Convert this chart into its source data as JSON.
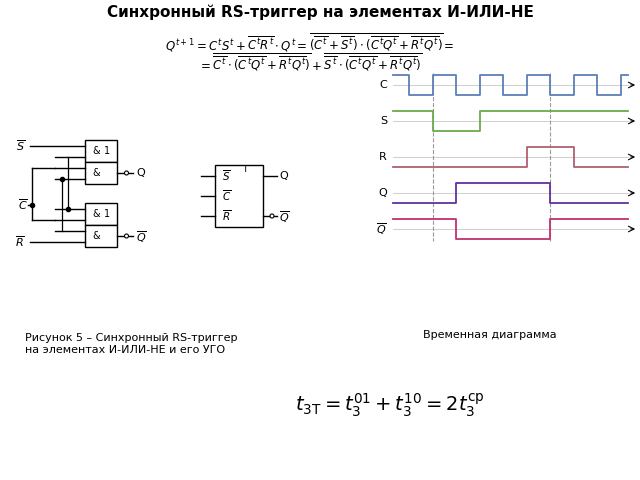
{
  "title": "Синхронный RS-триггер на элементах И-ИЛИ-НЕ",
  "caption_left": "Рисунок 5 – Синхронный RS-триггер\nна элементах И-ИЛИ-НЕ и его УГО",
  "caption_right": "Временная диаграмма",
  "bg_color": "#ffffff",
  "diagram_colors": {
    "C": "#5b7fb5",
    "S": "#6aaa50",
    "R": "#b06070",
    "Q": "#6030a0",
    "Qbar": "#c03070"
  },
  "dashed_line_color": "#999999",
  "C_times": [
    0,
    7,
    17,
    27,
    37,
    47,
    57,
    67,
    77,
    87,
    97,
    100
  ],
  "C_vals": [
    1,
    0,
    1,
    0,
    1,
    0,
    1,
    0,
    1,
    0,
    1,
    1
  ],
  "S_times": [
    0,
    17,
    37,
    100
  ],
  "S_vals": [
    1,
    0,
    1,
    1
  ],
  "R_times": [
    0,
    57,
    77,
    100
  ],
  "R_vals": [
    0,
    1,
    0,
    0
  ],
  "Q_times": [
    0,
    27,
    67,
    100
  ],
  "Q_vals": [
    0,
    1,
    0,
    0
  ],
  "Qb_times": [
    0,
    27,
    67,
    100
  ],
  "Qb_vals": [
    1,
    0,
    1,
    1
  ],
  "dash_t": [
    17,
    67
  ]
}
